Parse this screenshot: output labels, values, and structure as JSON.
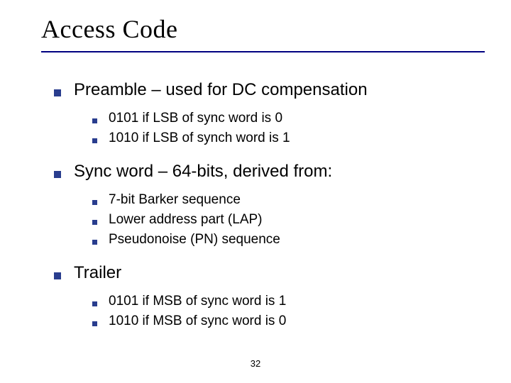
{
  "colors": {
    "bullet": "#293d8e",
    "rule": "#000080",
    "text": "#000000",
    "background": "#ffffff"
  },
  "typography": {
    "title_font": "Comic Sans MS",
    "title_size_pt": 36,
    "body_font": "Tahoma",
    "lvl1_size_pt": 24,
    "lvl2_size_pt": 19,
    "pagenum_size_pt": 13
  },
  "title": "Access Code",
  "page_number": "32",
  "sections": [
    {
      "heading": "Preamble – used for DC compensation",
      "items": [
        "0101 if LSB of sync word is 0",
        "1010 if LSB of synch word is 1"
      ]
    },
    {
      "heading": "Sync word – 64-bits, derived from:",
      "items": [
        "7-bit Barker sequence",
        "Lower address part (LAP)",
        "Pseudonoise (PN) sequence"
      ]
    },
    {
      "heading": "Trailer",
      "items": [
        "0101 if MSB of sync word is 1",
        "1010 if MSB of sync word is 0"
      ]
    }
  ]
}
